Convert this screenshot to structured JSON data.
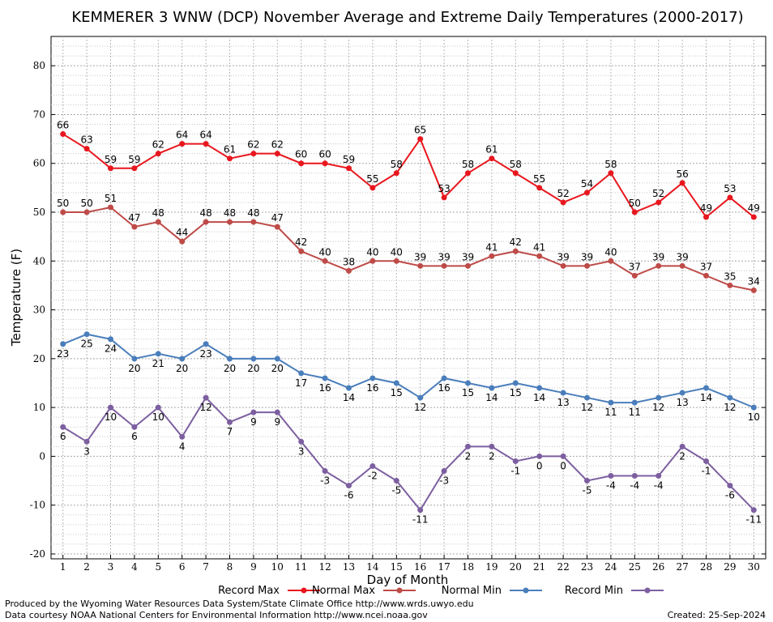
{
  "title": "KEMMERER 3 WNW (DCP) November Average and Extreme Daily Temperatures (2000-2017)",
  "footer": {
    "line1": "Produced by the Wyoming Water Resources Data System/State Climate Office http://www.wrds.uwyo.edu",
    "line2": "Data courtesy NOAA National Centers for Environmental Information http://www.ncei.noaa.gov",
    "created": "Created:  25-Sep-2024"
  },
  "chart_data": {
    "type": "line",
    "title": "KEMMERER 3 WNW (DCP) November Average and Extreme Daily Temperatures (2000-2017)",
    "xlabel": "Day of Month",
    "ylabel": "Temperature (F)",
    "xlim": [
      0.5,
      30.5
    ],
    "ylim": [
      -21,
      86
    ],
    "yticks": [
      -20,
      -10,
      0,
      10,
      20,
      30,
      40,
      50,
      60,
      70,
      80
    ],
    "x": [
      1,
      2,
      3,
      4,
      5,
      6,
      7,
      8,
      9,
      10,
      11,
      12,
      13,
      14,
      15,
      16,
      17,
      18,
      19,
      20,
      21,
      22,
      23,
      24,
      25,
      26,
      27,
      28,
      29,
      30
    ],
    "grid": true,
    "legend_position": "bottom",
    "series": [
      {
        "name": "Record Max",
        "color": "#e8171e",
        "label_pos": "above",
        "values": [
          66,
          63,
          59,
          59,
          62,
          64,
          64,
          61,
          62,
          62,
          60,
          60,
          59,
          55,
          58,
          65,
          53,
          58,
          61,
          58,
          55,
          52,
          54,
          58,
          50,
          52,
          56,
          49,
          53,
          49
        ]
      },
      {
        "name": "Normal Max",
        "color": "#be4b48",
        "label_pos": "above",
        "values": [
          50,
          50,
          51,
          47,
          48,
          44,
          48,
          48,
          48,
          47,
          42,
          40,
          38,
          40,
          40,
          39,
          39,
          39,
          41,
          42,
          41,
          39,
          39,
          40,
          37,
          39,
          39,
          37,
          35,
          34
        ]
      },
      {
        "name": "Normal Min",
        "color": "#4a7ebb",
        "label_pos": "below",
        "values": [
          23,
          25,
          24,
          20,
          21,
          20,
          23,
          20,
          20,
          20,
          17,
          16,
          14,
          16,
          15,
          12,
          16,
          15,
          14,
          15,
          14,
          13,
          12,
          11,
          11,
          12,
          13,
          14,
          12,
          10
        ]
      },
      {
        "name": "Record Min",
        "color": "#7d5fa0",
        "label_pos": "below",
        "values": [
          6,
          3,
          10,
          6,
          10,
          4,
          12,
          7,
          9,
          9,
          3,
          -3,
          -6,
          -2,
          -5,
          -11,
          -3,
          2,
          2,
          -1,
          0,
          0,
          -5,
          -4,
          -4,
          -4,
          2,
          -1,
          -6,
          -11
        ]
      }
    ]
  }
}
